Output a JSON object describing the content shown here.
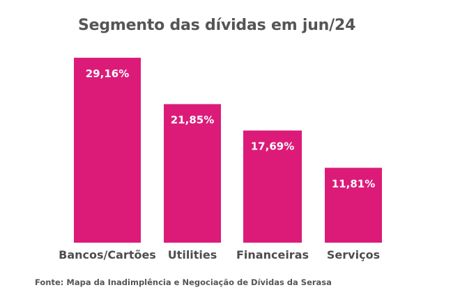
{
  "chart_data": {
    "type": "bar",
    "title": "Segmento das dívidas em jun/24",
    "categories": [
      "Bancos/Cartões",
      "Utilities",
      "Financeiras",
      "Serviços"
    ],
    "values": [
      29.16,
      21.85,
      17.69,
      11.81
    ],
    "data_labels": [
      "29,16%",
      "21,85%",
      "17,69%",
      "11,81%"
    ],
    "bar_color": "#dc1b79",
    "xlabel": "",
    "ylabel": "",
    "grid": false,
    "legend": "none"
  },
  "source": "Fonte: Mapa da Inadimplência e Negociação de Dívidas da Serasa"
}
